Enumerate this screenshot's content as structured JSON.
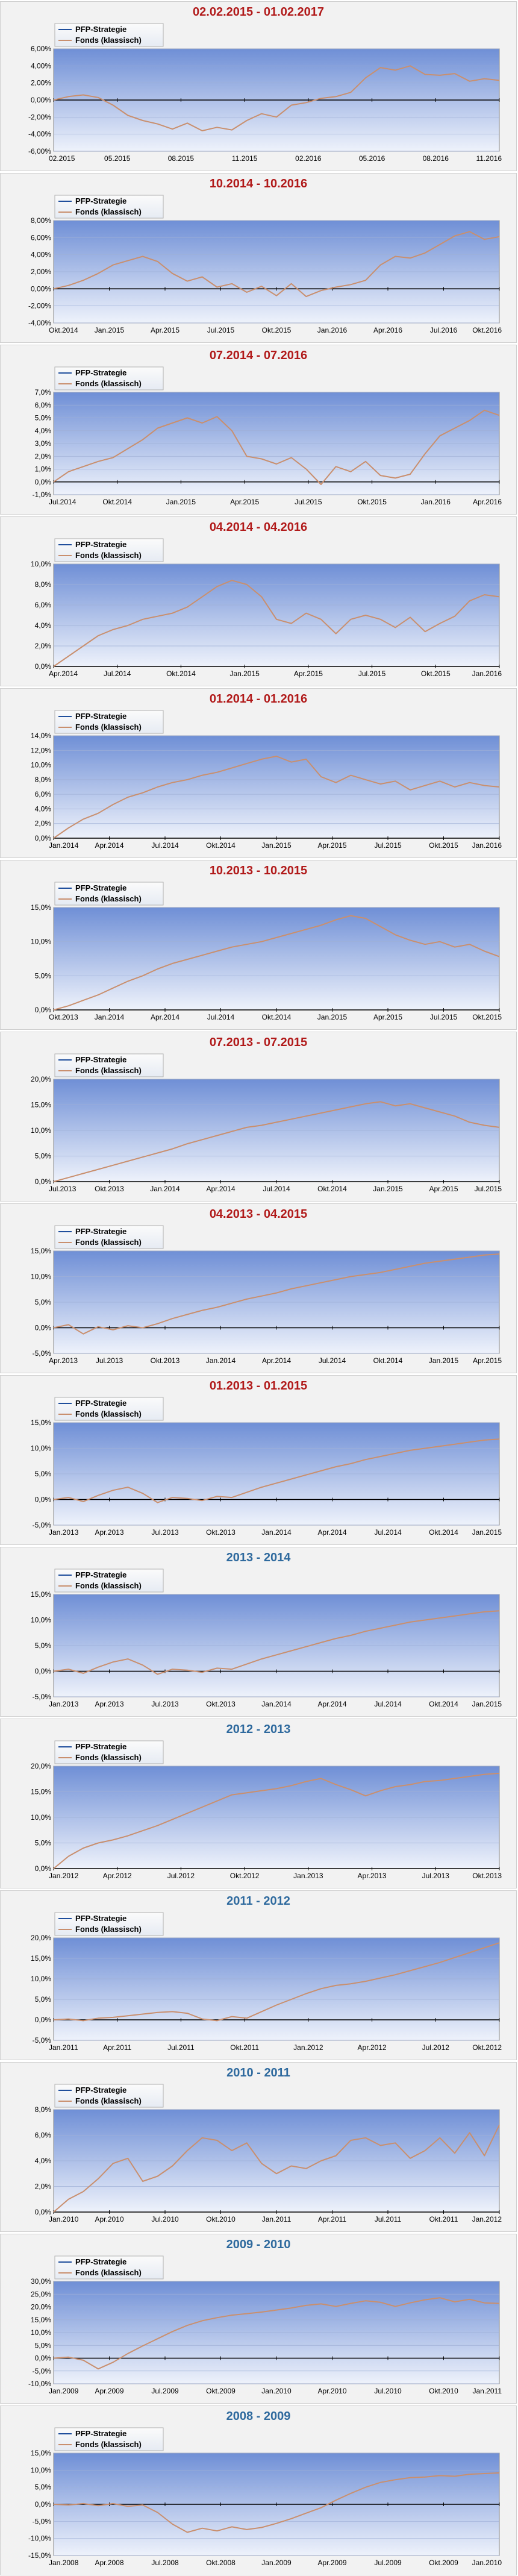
{
  "colors": {
    "title_red": "#b11a1a",
    "title_blue": "#2f6a9e",
    "strategy_line": "#1f4e9c",
    "fund_line": "#c98f6e",
    "plot_bg_top": "#6f8fd6",
    "plot_bg_bottom": "#eef2fb",
    "zero_line": "#000000"
  },
  "legend": {
    "strategy": "PFP-Strategie",
    "fund": "Fonds (klassisch)"
  },
  "chart_data": [
    {
      "type": "line",
      "title": "02.02.2015 - 01.02.2017",
      "title_color": "red",
      "yticks": [
        "6,00%",
        "4,00%",
        "2,00%",
        "0,00%",
        "-2,00%",
        "-4,00%",
        "-6,00%"
      ],
      "ylim": [
        -6,
        6
      ],
      "xticks": [
        "02.2015",
        "05.2015",
        "08.2015",
        "11.2015",
        "02.2016",
        "05.2016",
        "08.2016",
        "11.2016"
      ],
      "series": [
        {
          "name": "Fonds (klassisch)",
          "values": [
            0,
            0.4,
            0.6,
            0.3,
            -0.6,
            -1.8,
            -2.4,
            -2.8,
            -3.4,
            -2.7,
            -3.6,
            -3.2,
            -3.5,
            -2.4,
            -1.6,
            -2.0,
            -0.6,
            -0.3,
            0.2,
            0.4,
            0.9,
            2.6,
            3.8,
            3.5,
            4.0,
            3.0,
            2.9,
            3.1,
            2.2,
            2.5,
            2.3
          ]
        }
      ]
    },
    {
      "type": "line",
      "title": "10.2014 - 10.2016",
      "title_color": "red",
      "yticks": [
        "8,00%",
        "6,00%",
        "4,00%",
        "2,00%",
        "0,00%",
        "-2,00%",
        "-4,00%"
      ],
      "ylim": [
        -4,
        8
      ],
      "xticks": [
        "Okt.2014",
        "Jan.2015",
        "Apr.2015",
        "Jul.2015",
        "Okt.2015",
        "Jan.2016",
        "Apr.2016",
        "Jul.2016",
        "Okt.2016"
      ],
      "series": [
        {
          "name": "Fonds (klassisch)",
          "values": [
            0,
            0.4,
            1.0,
            1.8,
            2.8,
            3.3,
            3.8,
            3.2,
            1.8,
            0.9,
            1.4,
            0.2,
            0.6,
            -0.4,
            0.3,
            -0.8,
            0.6,
            -0.9,
            -0.2,
            0.2,
            0.5,
            1.0,
            2.8,
            3.8,
            3.6,
            4.2,
            5.2,
            6.2,
            6.7,
            5.8,
            6.1
          ]
        }
      ]
    },
    {
      "type": "line",
      "title": "07.2014 - 07.2016",
      "title_color": "red",
      "yticks": [
        "7,0%",
        "6,0%",
        "5,0%",
        "4,0%",
        "3,0%",
        "2,0%",
        "1,0%",
        "0,0%",
        "-1,0%"
      ],
      "ylim": [
        -1,
        7
      ],
      "xticks": [
        "Jul.2014",
        "Okt.2014",
        "Jan.2015",
        "Apr.2015",
        "Jul.2015",
        "Okt.2015",
        "Jan.2016",
        "Apr.2016"
      ],
      "series": [
        {
          "name": "Fonds (klassisch)",
          "values": [
            0,
            0.8,
            1.2,
            1.6,
            1.9,
            2.6,
            3.3,
            4.2,
            4.6,
            5.0,
            4.6,
            5.1,
            4.0,
            2.0,
            1.8,
            1.4,
            1.9,
            1.0,
            -0.2,
            1.2,
            0.8,
            1.6,
            0.5,
            0.3,
            0.6,
            2.2,
            3.6,
            4.2,
            4.8,
            5.6,
            5.2
          ]
        }
      ]
    },
    {
      "type": "line",
      "title": "04.2014 - 04.2016",
      "title_color": "red",
      "yticks": [
        "10,0%",
        "8,0%",
        "6,0%",
        "4,0%",
        "2,0%",
        "0,0%"
      ],
      "ylim": [
        0,
        10
      ],
      "xticks": [
        "Apr.2014",
        "Jul.2014",
        "Okt.2014",
        "Jan.2015",
        "Apr.2015",
        "Jul.2015",
        "Okt.2015",
        "Jan.2016"
      ],
      "series": [
        {
          "name": "Fonds (klassisch)",
          "values": [
            0,
            1.0,
            2.0,
            3.0,
            3.6,
            4.0,
            4.6,
            4.9,
            5.2,
            5.8,
            6.8,
            7.8,
            8.4,
            8.0,
            6.8,
            4.6,
            4.2,
            5.2,
            4.6,
            3.2,
            4.6,
            5.0,
            4.6,
            3.8,
            4.8,
            3.4,
            4.2,
            4.9,
            6.4,
            7.0,
            6.8
          ]
        }
      ]
    },
    {
      "type": "line",
      "title": "01.2014 - 01.2016",
      "title_color": "red",
      "yticks": [
        "14,0%",
        "12,0%",
        "10,0%",
        "8,0%",
        "6,0%",
        "4,0%",
        "2,0%",
        "0,0%"
      ],
      "ylim": [
        0,
        14
      ],
      "xticks": [
        "Jan.2014",
        "Apr.2014",
        "Jul.2014",
        "Okt.2014",
        "Jan.2015",
        "Apr.2015",
        "Jul.2015",
        "Okt.2015",
        "Jan.2016"
      ],
      "series": [
        {
          "name": "Fonds (klassisch)",
          "values": [
            0,
            1.4,
            2.6,
            3.4,
            4.6,
            5.6,
            6.2,
            7.0,
            7.6,
            8.0,
            8.6,
            9.0,
            9.6,
            10.2,
            10.8,
            11.2,
            10.4,
            10.8,
            8.4,
            7.6,
            8.6,
            8.0,
            7.4,
            7.8,
            6.6,
            7.2,
            7.8,
            7.0,
            7.6,
            7.2,
            7.0
          ]
        }
      ]
    },
    {
      "type": "line",
      "title": "10.2013 - 10.2015",
      "title_color": "red",
      "yticks": [
        "15,0%",
        "10,0%",
        "5,0%",
        "0,0%"
      ],
      "ylim": [
        0,
        15
      ],
      "xticks": [
        "Okt.2013",
        "Jan.2014",
        "Apr.2014",
        "Jul.2014",
        "Okt.2014",
        "Jan.2015",
        "Apr.2015",
        "Jul.2015",
        "Okt.2015"
      ],
      "series": [
        {
          "name": "Fonds (klassisch)",
          "values": [
            0,
            0.6,
            1.4,
            2.2,
            3.2,
            4.2,
            5.0,
            6.0,
            6.8,
            7.4,
            8.0,
            8.6,
            9.2,
            9.6,
            10.0,
            10.6,
            11.2,
            11.8,
            12.4,
            13.2,
            13.8,
            13.4,
            12.2,
            11.0,
            10.2,
            9.6,
            10.0,
            9.2,
            9.6,
            8.6,
            7.8
          ]
        }
      ]
    },
    {
      "type": "line",
      "title": "07.2013 - 07.2015",
      "title_color": "red",
      "yticks": [
        "20,0%",
        "15,0%",
        "10,0%",
        "5,0%",
        "0,0%"
      ],
      "ylim": [
        0,
        20
      ],
      "xticks": [
        "Jul.2013",
        "Okt.2013",
        "Jan.2014",
        "Apr.2014",
        "Jul.2014",
        "Okt.2014",
        "Jan.2015",
        "Apr.2015",
        "Jul.2015"
      ],
      "series": [
        {
          "name": "Fonds (klassisch)",
          "values": [
            0,
            0.8,
            1.6,
            2.4,
            3.2,
            4.0,
            4.8,
            5.6,
            6.4,
            7.4,
            8.2,
            9.0,
            9.8,
            10.6,
            11.0,
            11.6,
            12.2,
            12.8,
            13.4,
            14.0,
            14.6,
            15.2,
            15.6,
            14.8,
            15.2,
            14.4,
            13.6,
            12.8,
            11.6,
            11.0,
            10.6
          ]
        }
      ]
    },
    {
      "type": "line",
      "title": "04.2013 - 04.2015",
      "title_color": "red",
      "yticks": [
        "15,0%",
        "10,0%",
        "5,0%",
        "0,0%",
        "-5,0%"
      ],
      "ylim": [
        -5,
        15
      ],
      "xticks": [
        "Apr.2013",
        "Jul.2013",
        "Okt.2013",
        "Jan.2014",
        "Apr.2014",
        "Jul.2014",
        "Okt.2014",
        "Jan.2015",
        "Apr.2015"
      ],
      "series": [
        {
          "name": "Fonds (klassisch)",
          "values": [
            0,
            0.6,
            -1.2,
            0.2,
            -0.4,
            0.4,
            0.0,
            0.8,
            1.8,
            2.6,
            3.4,
            4.0,
            4.8,
            5.6,
            6.2,
            6.8,
            7.6,
            8.2,
            8.8,
            9.4,
            10.0,
            10.4,
            10.8,
            11.4,
            12.0,
            12.6,
            13.0,
            13.4,
            13.8,
            14.2,
            14.4
          ]
        }
      ]
    },
    {
      "type": "line",
      "title": "01.2013 - 01.2015",
      "title_color": "red",
      "yticks": [
        "15,0%",
        "10,0%",
        "5,0%",
        "0,0%",
        "-5,0%"
      ],
      "ylim": [
        -5,
        15
      ],
      "xticks": [
        "Jan.2013",
        "Apr.2013",
        "Jul.2013",
        "Okt.2013",
        "Jan.2014",
        "Apr.2014",
        "Jul.2014",
        "Okt.2014",
        "Jan.2015"
      ],
      "series": [
        {
          "name": "Fonds (klassisch)",
          "values": [
            0,
            0.4,
            -0.4,
            0.8,
            1.8,
            2.4,
            1.2,
            -0.6,
            0.4,
            0.2,
            -0.2,
            0.6,
            0.4,
            1.4,
            2.4,
            3.2,
            4.0,
            4.8,
            5.6,
            6.4,
            7.0,
            7.8,
            8.4,
            9.0,
            9.6,
            10.0,
            10.4,
            10.8,
            11.2,
            11.6,
            11.8
          ]
        }
      ]
    },
    {
      "type": "line",
      "title": "2013 - 2014",
      "title_color": "blue",
      "yticks": [
        "15,0%",
        "10,0%",
        "5,0%",
        "0,0%",
        "-5,0%"
      ],
      "ylim": [
        -5,
        15
      ],
      "xticks": [
        "Jan.2013",
        "Apr.2013",
        "Jul.2013",
        "Okt.2013",
        "Jan.2014",
        "Apr.2014",
        "Jul.2014",
        "Okt.2014",
        "Jan.2015"
      ],
      "series": [
        {
          "name": "Fonds (klassisch)",
          "values": [
            0,
            0.4,
            -0.4,
            0.8,
            1.8,
            2.4,
            1.2,
            -0.6,
            0.4,
            0.2,
            -0.2,
            0.6,
            0.4,
            1.4,
            2.4,
            3.2,
            4.0,
            4.8,
            5.6,
            6.4,
            7.0,
            7.8,
            8.4,
            9.0,
            9.6,
            10.0,
            10.4,
            10.8,
            11.2,
            11.6,
            11.8
          ]
        }
      ]
    },
    {
      "type": "line",
      "title": "2012 - 2013",
      "title_color": "blue",
      "yticks": [
        "20,0%",
        "15,0%",
        "10,0%",
        "5,0%",
        "0,0%"
      ],
      "ylim": [
        0,
        20
      ],
      "xticks": [
        "Jan.2012",
        "Apr.2012",
        "Jul.2012",
        "Okt.2012",
        "Jan.2013",
        "Apr.2013",
        "Jul.2013",
        "Okt.2013"
      ],
      "series": [
        {
          "name": "Fonds (klassisch)",
          "values": [
            0,
            2.4,
            4.0,
            5.0,
            5.6,
            6.4,
            7.4,
            8.4,
            9.6,
            10.8,
            12.0,
            13.2,
            14.4,
            14.8,
            15.2,
            15.6,
            16.2,
            17.0,
            17.6,
            16.4,
            15.4,
            14.2,
            15.2,
            16.0,
            16.4,
            17.0,
            17.2,
            17.6,
            18.0,
            18.4,
            18.6
          ]
        }
      ]
    },
    {
      "type": "line",
      "title": "2011 - 2012",
      "title_color": "blue",
      "yticks": [
        "20,0%",
        "15,0%",
        "10,0%",
        "5,0%",
        "0,0%",
        "-5,0%"
      ],
      "ylim": [
        -5,
        20
      ],
      "xticks": [
        "Jan.2011",
        "Apr.2011",
        "Jul.2011",
        "Okt.2011",
        "Jan.2012",
        "Apr.2012",
        "Jul.2012",
        "Okt.2012"
      ],
      "series": [
        {
          "name": "Fonds (klassisch)",
          "values": [
            0,
            0.2,
            -0.2,
            0.4,
            0.6,
            1.0,
            1.4,
            1.8,
            2.0,
            1.6,
            0.2,
            -0.2,
            0.8,
            0.4,
            2.0,
            3.6,
            5.0,
            6.4,
            7.6,
            8.4,
            8.8,
            9.4,
            10.2,
            11.0,
            12.0,
            13.0,
            14.0,
            15.2,
            16.4,
            17.6,
            18.8
          ]
        }
      ]
    },
    {
      "type": "line",
      "title": "2010 - 2011",
      "title_color": "blue",
      "yticks": [
        "8,0%",
        "6,0%",
        "4,0%",
        "2,0%",
        "0,0%"
      ],
      "ylim": [
        0,
        8
      ],
      "xticks": [
        "Jan.2010",
        "Apr.2010",
        "Jul.2010",
        "Okt.2010",
        "Jan.2011",
        "Apr.2011",
        "Jul.2011",
        "Okt.2011",
        "Jan.2012"
      ],
      "series": [
        {
          "name": "Fonds (klassisch)",
          "values": [
            0,
            1.0,
            1.6,
            2.6,
            3.8,
            4.2,
            2.4,
            2.8,
            3.6,
            4.8,
            5.8,
            5.6,
            4.8,
            5.4,
            3.8,
            3.0,
            3.6,
            3.4,
            4.0,
            4.4,
            5.6,
            5.8,
            5.2,
            5.4,
            4.2,
            4.8,
            5.8,
            4.6,
            6.2,
            4.4,
            6.8
          ]
        }
      ]
    },
    {
      "type": "line",
      "title": "2009 - 2010",
      "title_color": "blue",
      "yticks": [
        "30,0%",
        "25,0%",
        "20,0%",
        "15,0%",
        "10,0%",
        "5,0%",
        "0,0%",
        "-5,0%",
        "-10,0%"
      ],
      "ylim": [
        -10,
        30
      ],
      "xticks": [
        "Jan.2009",
        "Apr.2009",
        "Jul.2009",
        "Okt.2009",
        "Jan.2010",
        "Apr.2010",
        "Jul.2010",
        "Okt.2010",
        "Jan.2011"
      ],
      "series": [
        {
          "name": "Fonds (klassisch)",
          "values": [
            0,
            0.4,
            -0.8,
            -4.2,
            -1.6,
            1.8,
            4.8,
            7.6,
            10.4,
            12.8,
            14.6,
            15.8,
            16.8,
            17.4,
            18.0,
            18.8,
            19.6,
            20.6,
            21.2,
            20.2,
            21.4,
            22.4,
            21.8,
            20.2,
            21.6,
            22.8,
            23.6,
            22.0,
            23.0,
            21.6,
            21.4
          ]
        }
      ]
    },
    {
      "type": "line",
      "title": "2008 - 2009",
      "title_color": "blue",
      "yticks": [
        "15,0%",
        "10,0%",
        "5,0%",
        "0,0%",
        "-5,0%",
        "-10,0%",
        "-15,0%"
      ],
      "ylim": [
        -15,
        15
      ],
      "xticks": [
        "Jan.2008",
        "Apr.2008",
        "Jul.2008",
        "Okt.2008",
        "Jan.2009",
        "Apr.2009",
        "Jul.2009",
        "Okt.2009",
        "Jan.2010"
      ],
      "series": [
        {
          "name": "Fonds (klassisch)",
          "values": [
            0,
            -0.2,
            0.2,
            -0.4,
            0.2,
            -0.6,
            -0.2,
            -2.4,
            -5.8,
            -8.2,
            -7.0,
            -7.8,
            -6.6,
            -7.4,
            -6.8,
            -5.6,
            -4.2,
            -2.6,
            -1.0,
            1.2,
            3.2,
            5.0,
            6.4,
            7.2,
            7.8,
            8.0,
            8.4,
            8.2,
            8.8,
            9.0,
            9.2
          ]
        }
      ]
    }
  ]
}
